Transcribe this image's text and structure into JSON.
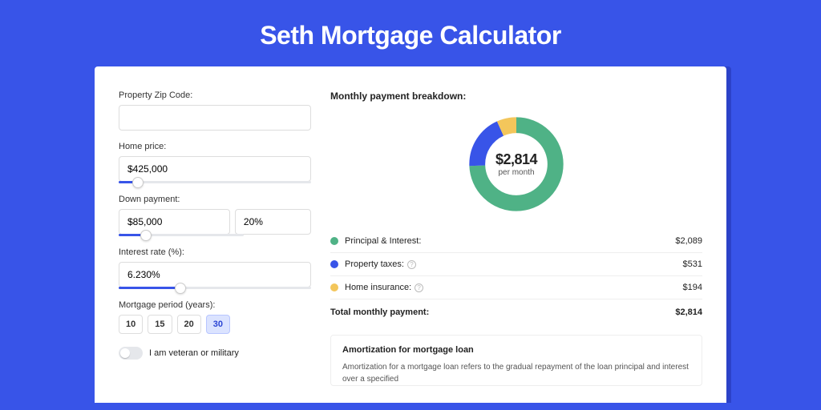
{
  "page": {
    "title": "Seth Mortgage Calculator",
    "background_color": "#3854e8",
    "panel_background": "#ffffff"
  },
  "form": {
    "zip": {
      "label": "Property Zip Code:",
      "value": ""
    },
    "home_price": {
      "label": "Home price:",
      "value": "$425,000",
      "slider_pct": 10
    },
    "down_payment": {
      "label": "Down payment:",
      "amount": "$85,000",
      "percent": "20%",
      "slider_pct": 22
    },
    "interest": {
      "label": "Interest rate (%):",
      "value": "6.230%",
      "slider_pct": 32
    },
    "period": {
      "label": "Mortgage period (years):",
      "options": [
        "10",
        "15",
        "20",
        "30"
      ],
      "selected_index": 3
    },
    "veteran": {
      "label": "I am veteran or military",
      "checked": false
    }
  },
  "breakdown": {
    "title": "Monthly payment breakdown:",
    "donut": {
      "amount": "$2,814",
      "sub": "per month",
      "slices": [
        {
          "value": 2089,
          "color": "#4fb286"
        },
        {
          "value": 531,
          "color": "#3854e8"
        },
        {
          "value": 194,
          "color": "#f3c65b"
        }
      ],
      "track_color": "#eeeeee",
      "stroke_width": 16
    },
    "legend": [
      {
        "label": "Principal & Interest:",
        "color": "#4fb286",
        "value": "$2,089",
        "info": false
      },
      {
        "label": "Property taxes:",
        "color": "#3854e8",
        "value": "$531",
        "info": true
      },
      {
        "label": "Home insurance:",
        "color": "#f3c65b",
        "value": "$194",
        "info": true
      }
    ],
    "total": {
      "label": "Total monthly payment:",
      "value": "$2,814"
    }
  },
  "amortization": {
    "title": "Amortization for mortgage loan",
    "text": "Amortization for a mortgage loan refers to the gradual repayment of the loan principal and interest over a specified"
  }
}
